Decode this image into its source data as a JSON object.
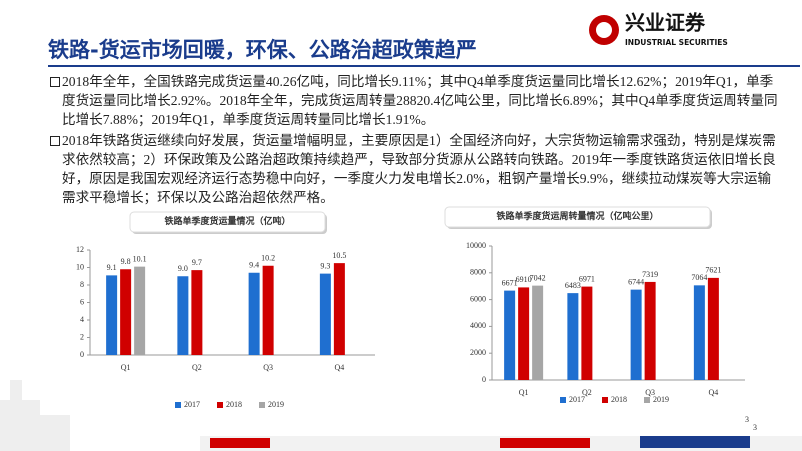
{
  "header": {
    "title": "铁路-货运市场回暖，环保、公路治超政策趋严",
    "logo_cn": "兴业证券",
    "logo_en": "INDUSTRIAL SECURITIES"
  },
  "bullets": [
    "2018年全年，全国铁路完成货运量40.26亿吨，同比增长9.11%；其中Q4单季度货运量同比增长12.62%；2019年Q1，单季度货运量同比增长2.92%。2018年全年，完成货运周转量28820.4亿吨公里，同比增长6.89%；其中Q4单季度货运周转量同比增长7.88%；2019年Q1，单季度货运周转量同比增长1.91%。",
    "2018年铁路货运继续向好发展，货运量增幅明显，主要原因是1）全国经济向好，大宗货物运输需求强劲，特别是煤炭需求依然较高；2）环保政策及公路治超政策持续趋严，导致部分货源从公路转向铁路。2019年一季度铁路货运依旧增长良好，原因是我国宏观经济运行态势稳中向好，一季度火力发电增长2.0%，粗钢产量增长9.9%，继续拉动煤炭等大宗运输需求平稳增长；环保以及公路治超依然严格。"
  ],
  "page_number": "3",
  "chart_data": [
    {
      "type": "bar",
      "title": "铁路单季度货运量情况（亿吨）",
      "categories": [
        "Q1",
        "Q2",
        "Q3",
        "Q4"
      ],
      "series": [
        {
          "name": "2017",
          "color": "#1f6fd0",
          "values": [
            9.1,
            9.0,
            9.4,
            9.3
          ],
          "value_labels": [
            "9.1",
            "9.0",
            "9.4",
            "9.3"
          ]
        },
        {
          "name": "2018",
          "color": "#d00000",
          "values": [
            9.8,
            9.7,
            10.2,
            10.5
          ],
          "value_labels": [
            "9.8",
            "9.7",
            "10.2",
            "10.5"
          ]
        },
        {
          "name": "2019",
          "color": "#a6a6a6",
          "values": [
            10.1,
            null,
            null,
            null
          ],
          "value_labels": [
            "10.1",
            null,
            null,
            null
          ]
        }
      ],
      "ylim": [
        0,
        12
      ],
      "yticks": [
        0,
        2,
        4,
        6,
        8,
        10,
        12
      ]
    },
    {
      "type": "bar",
      "title": "铁路单季度货运周转量情况（亿吨公里）",
      "categories": [
        "Q1",
        "Q2",
        "Q3",
        "Q4"
      ],
      "series": [
        {
          "name": "2017",
          "color": "#1f6fd0",
          "values": [
            6671,
            6483,
            6744,
            7064
          ]
        },
        {
          "name": "2018",
          "color": "#d00000",
          "values": [
            6910,
            6971,
            7319,
            7621
          ]
        },
        {
          "name": "2019",
          "color": "#a6a6a6",
          "values": [
            7042,
            null,
            null,
            null
          ]
        }
      ],
      "ylim": [
        0,
        10000
      ],
      "yticks": [
        0,
        2000,
        4000,
        6000,
        8000,
        10000
      ]
    }
  ]
}
